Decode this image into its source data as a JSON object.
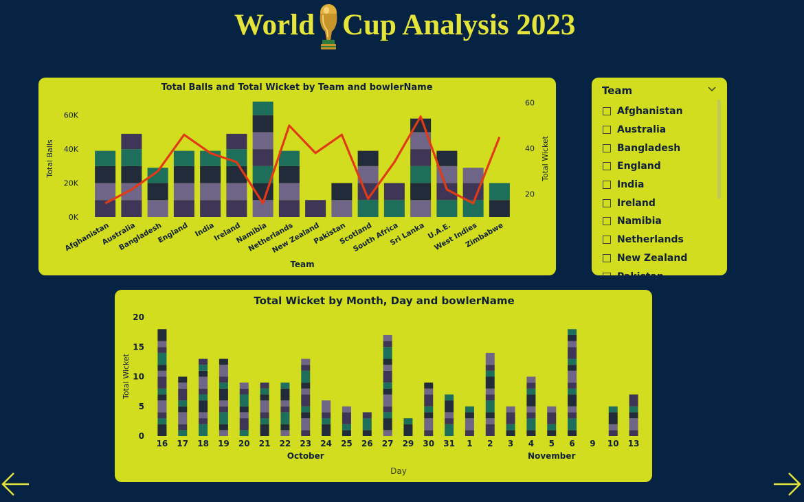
{
  "page": {
    "title": "World Cup Analysis 2023",
    "title_color": "#e4e43a",
    "background": "#062343",
    "panel_color": "#d3dd1f"
  },
  "trophy_icon": "world-cup-trophy-icon",
  "chart_data": [
    {
      "type": "bar",
      "stacked": true,
      "secondary_line": true,
      "title": "Total Balls and Total Wicket by Team and bowlerName",
      "xlabel": "Team",
      "ylabel": "Total Balls",
      "y2label": "Total Wicket",
      "categories": [
        "Afghanistan",
        "Australia",
        "Bangladesh",
        "England",
        "India",
        "Ireland",
        "Namibia",
        "Netherlands",
        "New Zealand",
        "Pakistan",
        "Scotland",
        "South Africa",
        "Sri Lanka",
        "U.A.E.",
        "West Indies",
        "Zimbabwe"
      ],
      "bar_totals": [
        39000,
        49000,
        29000,
        39000,
        39000,
        49000,
        68000,
        39000,
        10000,
        20000,
        39000,
        20000,
        58000,
        39000,
        29000,
        20000
      ],
      "bar_segments": [
        [
          10000,
          10000,
          10000,
          9000
        ],
        [
          10000,
          10000,
          10000,
          10000,
          9000
        ],
        [
          10000,
          10000,
          9000
        ],
        [
          10000,
          10000,
          10000,
          9000
        ],
        [
          10000,
          10000,
          10000,
          9000
        ],
        [
          10000,
          10000,
          10000,
          10000,
          9000
        ],
        [
          10000,
          10000,
          10000,
          10000,
          10000,
          10000,
          8000
        ],
        [
          10000,
          10000,
          10000,
          9000
        ],
        [
          10000
        ],
        [
          10000,
          10000
        ],
        [
          10000,
          10000,
          10000,
          9000
        ],
        [
          10000,
          10000
        ],
        [
          10000,
          10000,
          10000,
          10000,
          10000,
          8000
        ],
        [
          10000,
          10000,
          10000,
          9000
        ],
        [
          10000,
          10000,
          9000
        ],
        [
          10000,
          10000
        ]
      ],
      "line_values": [
        16,
        22,
        30,
        46,
        38,
        34,
        16,
        50,
        38,
        46,
        18,
        34,
        54,
        22,
        16,
        45
      ],
      "yticks": [
        "0K",
        "20K",
        "40K",
        "60K"
      ],
      "ylim": [
        0,
        70000
      ],
      "y2ticks": [
        20,
        40,
        60
      ],
      "y2lim": [
        10,
        62
      ],
      "line_color": "#e03a16"
    },
    {
      "type": "bar",
      "stacked": true,
      "title": "Total Wicket by Month, Day and bowlerName",
      "xlabel": "Day",
      "ylabel": "Total Wicket",
      "months": [
        {
          "label": "October",
          "first_day": "16",
          "last_day": "31"
        },
        {
          "label": "November",
          "first_day": "1",
          "last_day": "13"
        }
      ],
      "categories": [
        "16",
        "17",
        "18",
        "19",
        "20",
        "21",
        "22",
        "23",
        "24",
        "25",
        "26",
        "27",
        "29",
        "30",
        "31",
        "1",
        "2",
        "3",
        "4",
        "5",
        "6",
        "9",
        "10",
        "13"
      ],
      "values": [
        18,
        10,
        13,
        13,
        9,
        9,
        9,
        13,
        6,
        5,
        4,
        17,
        3,
        9,
        7,
        5,
        14,
        5,
        10,
        5,
        18,
        0,
        5,
        7
      ],
      "ylim": [
        0,
        20
      ],
      "yticks": [
        0,
        5,
        10,
        15,
        20
      ]
    }
  ],
  "slicer": {
    "title": "Team",
    "items": [
      "Afghanistan",
      "Australia",
      "Bangladesh",
      "England",
      "India",
      "Ireland",
      "Namibia",
      "Netherlands",
      "New Zealand",
      "Pakistan"
    ]
  }
}
